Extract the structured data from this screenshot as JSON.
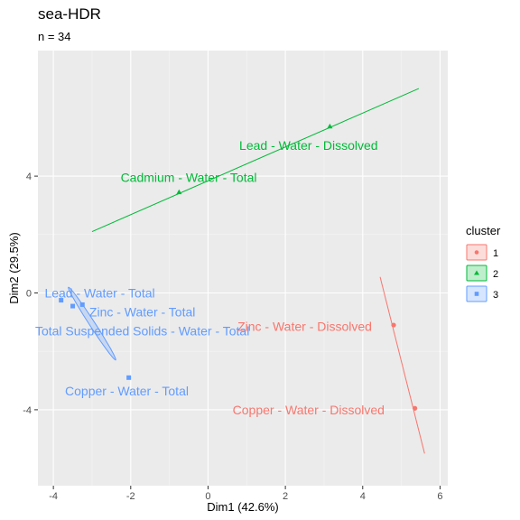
{
  "chart_data": {
    "type": "scatter",
    "title": "sea-HDR",
    "subtitle": "n = 34",
    "xlabel": "Dim1 (42.6%)",
    "ylabel": "Dim2 (29.5%)",
    "xlim": [
      -4.4,
      6.2
    ],
    "ylim": [
      -6.6,
      8.3
    ],
    "xticks": [
      -4,
      -2,
      0,
      2,
      4,
      6
    ],
    "yticks": [
      -4,
      0,
      4
    ],
    "grid": true,
    "legend": {
      "title": "cluster",
      "position": "right",
      "entries": [
        {
          "label": "1",
          "color": "#F8766D"
        },
        {
          "label": "2",
          "color": "#00BA38"
        },
        {
          "label": "3",
          "color": "#619CFF"
        }
      ]
    },
    "points": [
      {
        "label": "Zinc - Water - Dissolved",
        "x": 4.8,
        "y": -1.1,
        "cluster": "1",
        "label_x": 2.5,
        "label_y": -1.15
      },
      {
        "label": "Copper - Water - Dissolved",
        "x": 5.35,
        "y": -3.95,
        "cluster": "1",
        "label_x": 2.6,
        "label_y": -4.0
      },
      {
        "label": "Lead - Water - Dissolved",
        "x": 3.15,
        "y": 5.7,
        "cluster": "2",
        "label_x": 2.6,
        "label_y": 5.05
      },
      {
        "label": "Cadmium - Water - Total",
        "x": -0.75,
        "y": 3.45,
        "cluster": "2",
        "label_x": -0.5,
        "label_y": 3.95
      },
      {
        "label": "Lead - Water - Total",
        "x": -3.8,
        "y": -0.25,
        "cluster": "3",
        "label_x": -2.8,
        "label_y": 0.0
      },
      {
        "label": "Zinc - Water - Total",
        "x": -3.5,
        "y": -0.45,
        "cluster": "3",
        "label_x": -1.7,
        "label_y": -0.65
      },
      {
        "label": "Total Suspended Solids - Water - Total",
        "x": -3.25,
        "y": -0.4,
        "cluster": "3",
        "label_x": -1.7,
        "label_y": -1.3
      },
      {
        "label": "Copper - Water - Total",
        "x": -2.05,
        "y": -2.9,
        "cluster": "3",
        "label_x": -2.1,
        "label_y": -3.35
      }
    ],
    "cluster_lines": [
      {
        "cluster": "1",
        "x": [
          4.45,
          5.6
        ],
        "y": [
          0.55,
          -5.5
        ]
      },
      {
        "cluster": "2",
        "x": [
          -3.0,
          5.45
        ],
        "y": [
          2.1,
          7.0
        ]
      }
    ],
    "cluster_ellipse": {
      "cluster": "3",
      "cx": -3.0,
      "cy": -1.05,
      "rx": 2.7,
      "ry": 0.17,
      "angle_deg": -57
    }
  }
}
